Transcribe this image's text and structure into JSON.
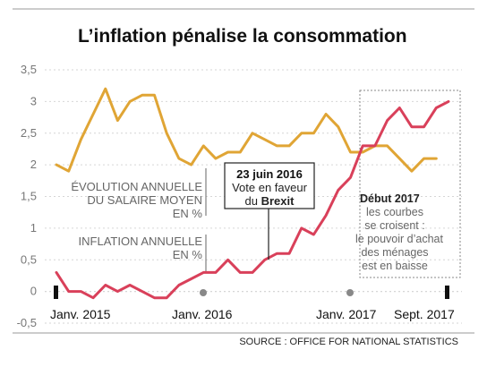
{
  "chart_data": {
    "type": "line",
    "title": "L’inflation pénalise la consommation",
    "x_tick_labels": [
      "Janv. 2015",
      "Janv. 2016",
      "Janv. 2017",
      "Sept. 2017"
    ],
    "y_tick_labels": [
      "3,5",
      "3",
      "2,5",
      "2",
      "1,5",
      "1",
      "0,5",
      "0",
      "-0,5"
    ],
    "ylim": [
      -0.5,
      3.5
    ],
    "grid": true,
    "x": [
      "2015-01",
      "2015-02",
      "2015-03",
      "2015-04",
      "2015-05",
      "2015-06",
      "2015-07",
      "2015-08",
      "2015-09",
      "2015-10",
      "2015-11",
      "2015-12",
      "2016-01",
      "2016-02",
      "2016-03",
      "2016-04",
      "2016-05",
      "2016-06",
      "2016-07",
      "2016-08",
      "2016-09",
      "2016-10",
      "2016-11",
      "2016-12",
      "2017-01",
      "2017-02",
      "2017-03",
      "2017-04",
      "2017-05",
      "2017-06",
      "2017-07",
      "2017-08",
      "2017-09"
    ],
    "series": [
      {
        "name": "ÉVOLUTION ANNUELLE DU SALAIRE MOYEN EN %",
        "label_lines": [
          "ÉVOLUTION ANNUELLE",
          "DU SALAIRE MOYEN",
          "EN %"
        ],
        "color": "#e0a535",
        "values": [
          2.0,
          1.9,
          2.4,
          2.8,
          3.2,
          2.7,
          3.0,
          3.1,
          3.1,
          2.5,
          2.1,
          2.0,
          2.3,
          2.1,
          2.2,
          2.2,
          2.5,
          2.4,
          2.3,
          2.3,
          2.5,
          2.5,
          2.8,
          2.6,
          2.2,
          2.2,
          2.3,
          2.3,
          2.1,
          1.9,
          2.1,
          2.1,
          null
        ]
      },
      {
        "name": "INFLATION ANNUELLE EN %",
        "label_lines": [
          "INFLATION ANNUELLE",
          "EN %"
        ],
        "color": "#d9405a",
        "values": [
          0.3,
          0.0,
          0.0,
          -0.1,
          0.1,
          0.0,
          0.1,
          0.0,
          -0.1,
          -0.1,
          0.1,
          0.2,
          0.3,
          0.3,
          0.5,
          0.3,
          0.3,
          0.5,
          0.6,
          0.6,
          1.0,
          0.9,
          1.2,
          1.6,
          1.8,
          2.3,
          2.3,
          2.7,
          2.9,
          2.6,
          2.6,
          2.9,
          3.0
        ]
      }
    ],
    "annotations": {
      "brexit_box": {
        "line1": "23 juin 2016",
        "line2": "Vote en faveur",
        "line3_prefix": "du ",
        "line3_bold": "Brexit"
      },
      "debut_2017": {
        "title": "Début 2017",
        "lines": [
          "les courbes",
          "se croisent :",
          "le pouvoir d’achat",
          "des ménages",
          "est en baisse"
        ]
      }
    },
    "source": "SOURCE : OFFICE FOR NATIONAL STATISTICS"
  }
}
